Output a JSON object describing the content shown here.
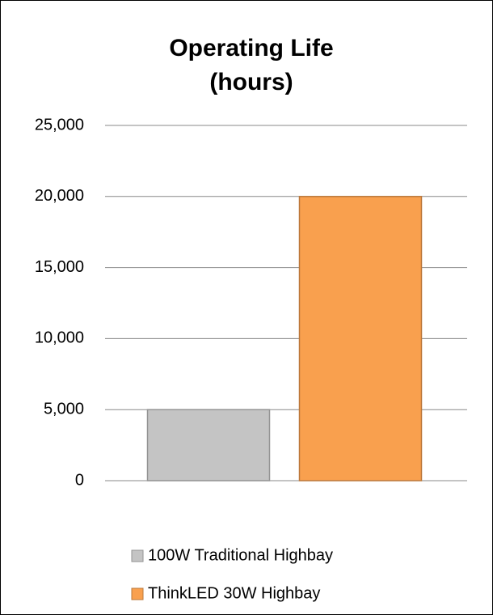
{
  "chart_data": {
    "type": "bar",
    "title": "Operating Life (hours)",
    "categories": [
      null
    ],
    "series": [
      {
        "name": "100W Traditional Highbay",
        "color": "#c4c4c4",
        "values": [
          5000
        ]
      },
      {
        "name": "ThinkLED 30W Highbay",
        "color": "#f9a04e",
        "values": [
          20000
        ]
      }
    ],
    "ylim": [
      0,
      25000
    ],
    "yticks": [
      0,
      {
        "value": 5000,
        "label": "5,000"
      },
      {
        "value": 10000,
        "label": "10,000"
      },
      {
        "value": 15000,
        "label": "15,000"
      },
      {
        "value": 20000,
        "label": "20,000"
      },
      {
        "value": 25000,
        "label": "25,000"
      }
    ],
    "grid": true,
    "legend": "bottom"
  }
}
